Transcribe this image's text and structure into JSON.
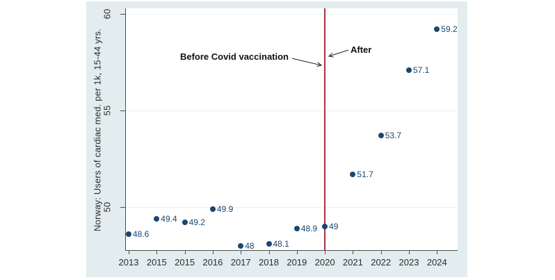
{
  "chart_data": {
    "type": "scatter",
    "title": "",
    "xlabel": "",
    "ylabel": "Norway: Users of cardiac med. per 1k, 15-44 yrs.",
    "x_tick_labels": [
      "2013",
      "2015",
      "2015",
      "2016",
      "2017",
      "2018",
      "2019",
      "2020",
      "2021",
      "2022",
      "2023",
      "2024"
    ],
    "y_tick_labels": [
      "60",
      "55",
      "50"
    ],
    "y_tick_values": [
      60,
      55,
      50
    ],
    "ylim": [
      47.7,
      60.3
    ],
    "grid": true,
    "legend_position": "none",
    "points": [
      {
        "x": "2013",
        "value": 48.6,
        "label": "48.6"
      },
      {
        "x": "2015",
        "value": 49.4,
        "label": "49.4"
      },
      {
        "x": "2015",
        "value": 49.2,
        "label": "49.2"
      },
      {
        "x": "2016",
        "value": 49.9,
        "label": "49.9"
      },
      {
        "x": "2017",
        "value": 48,
        "label": "48"
      },
      {
        "x": "2018",
        "value": 48.1,
        "label": "48.1"
      },
      {
        "x": "2019",
        "value": 48.9,
        "label": "48.9"
      },
      {
        "x": "2020",
        "value": 49,
        "label": "49"
      },
      {
        "x": "2021",
        "value": 51.7,
        "label": "51.7"
      },
      {
        "x": "2022",
        "value": 53.7,
        "label": "53.7"
      },
      {
        "x": "2023",
        "value": 57.1,
        "label": "57.1"
      },
      {
        "x": "2024",
        "value": 59.2,
        "label": "59.2"
      }
    ],
    "reference_line": {
      "x": "2020",
      "orientation": "vertical"
    },
    "annotations": {
      "before_label": "Before Covid vaccination",
      "after_label": "After"
    }
  },
  "colors": {
    "point": "#1a476f",
    "point_label": "#1a476f",
    "reference_line": "#a23440",
    "panel_background": "#e3edef",
    "plot_background": "#ffffff",
    "gridline": "#e9f1f2",
    "axis": "#4d4d4d",
    "text": "#2b2b2b",
    "annotation_text": "#111111"
  }
}
